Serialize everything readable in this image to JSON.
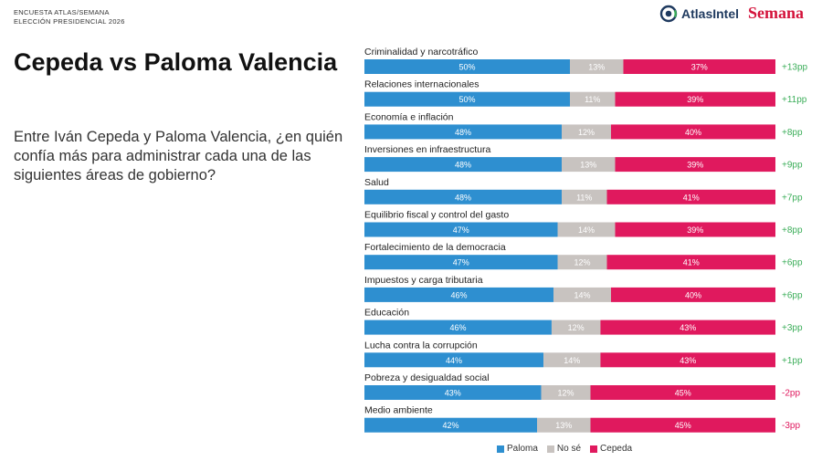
{
  "header": {
    "survey_label": "ENCUESTA ATLAS/SEMANA",
    "election_label": "ELECCIÓN PRESIDENCIAL 2026",
    "logo_atlas": "AtlasIntel",
    "logo_semana": "Semana"
  },
  "title": "Cepeda vs Paloma Valencia",
  "question": "Entre Iván Cepeda y Paloma Valencia, ¿en quién confía más para administrar cada una de las siguientes áreas de gobierno?",
  "colors": {
    "paloma": "#2e8fd0",
    "no_se": "#c8c3c0",
    "cepeda": "#e0195e",
    "diff_positive": "#3cae5a",
    "diff_negative": "#e0195e"
  },
  "chart_data": {
    "type": "bar",
    "orientation": "horizontal",
    "stacked": true,
    "normalized": true,
    "categories": [
      "Criminalidad y narcotráfico",
      "Relaciones internacionales",
      "Economía e inflación",
      "Inversiones en infraestructura",
      "Salud",
      "Equilibrio fiscal y control del gasto",
      "Fortalecimiento de la democracia",
      "Impuestos y carga tributaria",
      "Educación",
      "Lucha contra la corrupción",
      "Pobreza y desigualdad social",
      "Medio ambiente"
    ],
    "series": [
      {
        "name": "Paloma",
        "color": "#2e8fd0",
        "values": [
          50,
          50,
          48,
          48,
          48,
          47,
          47,
          46,
          46,
          44,
          43,
          42
        ]
      },
      {
        "name": "No sé",
        "color": "#c8c3c0",
        "values": [
          13,
          11,
          12,
          13,
          11,
          14,
          12,
          14,
          12,
          14,
          12,
          13
        ]
      },
      {
        "name": "Cepeda",
        "color": "#e0195e",
        "values": [
          37,
          39,
          40,
          39,
          41,
          39,
          41,
          40,
          43,
          43,
          45,
          45
        ]
      }
    ],
    "value_labels": {
      "Paloma": [
        "50%",
        "50%",
        "48%",
        "48%",
        "48%",
        "47%",
        "47%",
        "46%",
        "46%",
        "44%",
        "43%",
        "42%"
      ],
      "No sé": [
        "13%",
        "11%",
        "12%",
        "13%",
        "11%",
        "14%",
        "12%",
        "14%",
        "12%",
        "14%",
        "12%",
        "13%"
      ],
      "Cepeda": [
        "37%",
        "39%",
        "40%",
        "39%",
        "41%",
        "39%",
        "41%",
        "40%",
        "43%",
        "43%",
        "45%",
        "45%"
      ]
    },
    "differences": [
      "+13pp",
      "+11pp",
      "+8pp",
      "+9pp",
      "+7pp",
      "+8pp",
      "+6pp",
      "+6pp",
      "+3pp",
      "+1pp",
      "-2pp",
      "-3pp"
    ],
    "legend": [
      "Paloma",
      "No sé",
      "Cepeda"
    ],
    "legend_position": "bottom",
    "grid": false
  }
}
